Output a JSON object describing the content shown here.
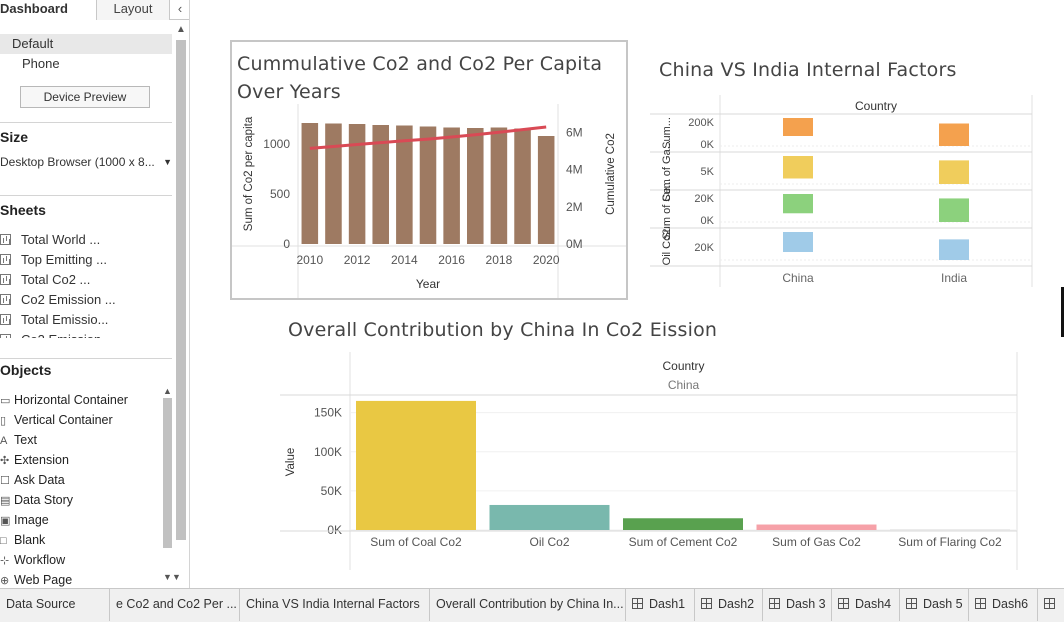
{
  "left_panel": {
    "tab_dashboard": "Dashboard",
    "tab_layout": "Layout",
    "collapse_glyph": "‹",
    "device_default": "Default",
    "device_phone": "Phone",
    "device_preview_btn": "Device Preview",
    "size_title": "Size",
    "size_value": "Desktop Browser (1000 x 8...",
    "sheets_title": "Sheets",
    "sheets": [
      "Total World ...",
      "Top Emitting ...",
      "Total Co2 ...",
      "Co2 Emission ...",
      "Total Emissio...",
      "Co2 Emission"
    ],
    "objects_title": "Objects",
    "objects": [
      {
        "icon": "horizontal-container-icon",
        "glyph": "▭",
        "label": "Horizontal Container"
      },
      {
        "icon": "vertical-container-icon",
        "glyph": "▯",
        "label": "Vertical Container"
      },
      {
        "icon": "text-icon",
        "glyph": "A",
        "label": "Text"
      },
      {
        "icon": "extension-icon",
        "glyph": "✣",
        "label": "Extension"
      },
      {
        "icon": "ask-data-icon",
        "glyph": "☐",
        "label": "Ask Data"
      },
      {
        "icon": "data-story-icon",
        "glyph": "▤",
        "label": "Data Story"
      },
      {
        "icon": "image-icon",
        "glyph": "▣",
        "label": "Image"
      },
      {
        "icon": "blank-icon",
        "glyph": "□",
        "label": "Blank"
      },
      {
        "icon": "workflow-icon",
        "glyph": "⊹",
        "label": "Workflow"
      },
      {
        "icon": "web-page-icon",
        "glyph": "⊕",
        "label": "Web Page"
      }
    ]
  },
  "sheet1": {
    "title_line1": "Cummulative Co2 and Co2 Per Capita",
    "title_line2": "Over Years"
  },
  "sheet2": {
    "title": "China VS India Internal Factors",
    "header": "Country",
    "row_labels": [
      "Sum...",
      "Sum of Ga...",
      "Sum of Ce...",
      "Oil Co2"
    ],
    "row_ticks": [
      [
        "200K",
        "0K"
      ],
      [
        "5K"
      ],
      [
        "20K",
        "0K"
      ],
      [
        "20K"
      ]
    ],
    "countries": [
      "China",
      "India"
    ]
  },
  "sheet3": {
    "title": "Overall Contribution by  China In Co2 Eission",
    "header": "Country",
    "subheader": "China"
  },
  "bottom_tabs": [
    {
      "label": "Data Source",
      "icon": false
    },
    {
      "label": "e Co2 and Co2 Per ...",
      "icon": false
    },
    {
      "label": "China VS India Internal Factors",
      "icon": false
    },
    {
      "label": "Overall Contribution by  China In...",
      "icon": false
    },
    {
      "label": "Dash1",
      "icon": true
    },
    {
      "label": "Dash2",
      "icon": true
    },
    {
      "label": "Dash 3",
      "icon": true
    },
    {
      "label": "Dash4",
      "icon": true
    },
    {
      "label": "Dash 5",
      "icon": true
    },
    {
      "label": "Dash6",
      "icon": true
    },
    {
      "label": "",
      "icon": true
    }
  ],
  "colors": {
    "bar_brown": "#9e7a62",
    "line_red": "#d94a55",
    "orange": "#f4a14e",
    "yellow": "#f0cd5c",
    "green": "#8cd17d",
    "blue": "#a0cbe8",
    "coal_yellow": "#e9c843",
    "oil_teal": "#79b8ad",
    "cement_green": "#59a14f",
    "gas_pink": "#f6a1a8"
  },
  "chart_data": [
    {
      "type": "bar",
      "subtype": "combo-bar-line",
      "xlabel": "Year",
      "ylabel": "Sum of Co2 per capita",
      "y2label": "Cumulative Co2",
      "x": [
        2010,
        2011,
        2012,
        2013,
        2014,
        2015,
        2016,
        2017,
        2018,
        2019,
        2020
      ],
      "x_ticks": [
        "2010",
        "2012",
        "2014",
        "2016",
        "2018",
        "2020"
      ],
      "y_ticks": [
        "0",
        "500",
        "1000"
      ],
      "y2_ticks": [
        "0M",
        "2M",
        "4M",
        "6M"
      ],
      "ylim": [
        0,
        1300
      ],
      "y2lim": [
        0,
        7000000
      ],
      "series": [
        {
          "name": "Sum of Co2 per capita",
          "kind": "bar",
          "values": [
            1210,
            1205,
            1200,
            1190,
            1185,
            1175,
            1165,
            1160,
            1165,
            1155,
            1080
          ]
        },
        {
          "name": "Cumulative Co2",
          "kind": "line",
          "values": [
            5150000,
            5250000,
            5360000,
            5460000,
            5560000,
            5650000,
            5760000,
            5880000,
            6020000,
            6160000,
            6300000
          ]
        }
      ],
      "grid": false
    },
    {
      "type": "bar",
      "subtype": "small-multiples",
      "categories": [
        "China",
        "India"
      ],
      "series": [
        {
          "name": "Sum...",
          "values": [
            120000,
            150000
          ]
        },
        {
          "name": "Sum of Ga...",
          "values": [
            6000,
            6300
          ]
        },
        {
          "name": "Sum of Ce...",
          "values": [
            18000,
            22000
          ]
        },
        {
          "name": "Oil Co2",
          "values": [
            16000,
            16500
          ]
        }
      ]
    },
    {
      "type": "bar",
      "categories": [
        "Sum of Coal Co2",
        "Oil Co2",
        "Sum of Cement Co2",
        "Sum of Gas Co2",
        "Sum of Flaring Co2"
      ],
      "values": [
        165000,
        32000,
        15000,
        7000,
        300
      ],
      "ylabel": "Value",
      "y_ticks": [
        "0K",
        "50K",
        "100K",
        "150K"
      ],
      "ylim": [
        0,
        170000
      ],
      "grid": true
    }
  ]
}
